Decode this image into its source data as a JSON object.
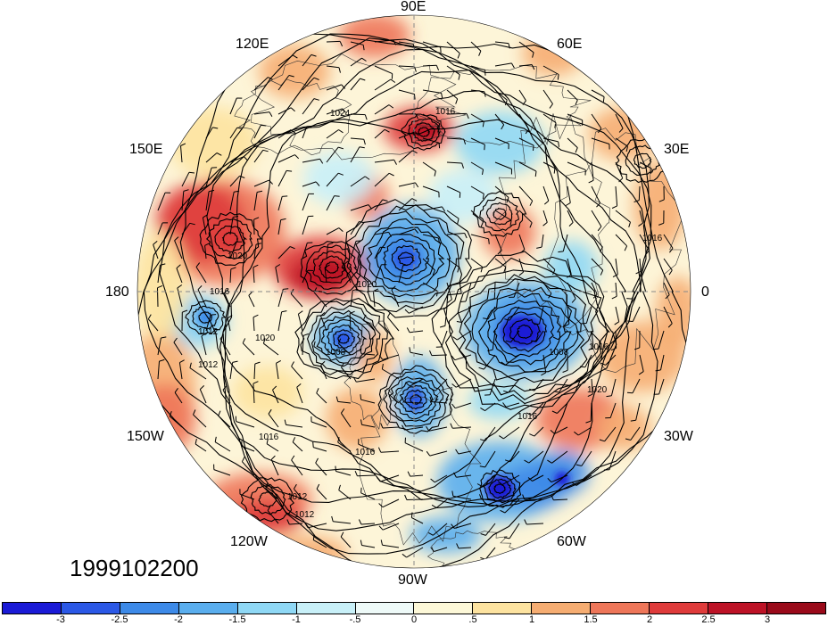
{
  "map": {
    "projection": "north-polar-stereographic",
    "date_label": "1999102200",
    "longitude_labels": [
      "90E",
      "60E",
      "30E",
      "0",
      "30W",
      "60W",
      "90W",
      "120W",
      "150W",
      "180",
      "150E",
      "120E"
    ],
    "isobar_labels": [
      "1016",
      "1024",
      "1020",
      "1016",
      "1012",
      "1020",
      "1012",
      "1020",
      "1008",
      "1016",
      "1016",
      "1012",
      "1012",
      "1016",
      "1020",
      "1008",
      "1016",
      "1016"
    ],
    "colors": {
      "land_outline": "#333333",
      "contour": "#000000",
      "grid": "#888888"
    }
  },
  "colorbar": {
    "tick_labels": [
      "-3",
      "-2.5",
      "-2",
      "-1.5",
      "-1",
      "-.5",
      "0",
      ".5",
      "1",
      "1.5",
      "2",
      "2.5",
      "3"
    ],
    "colors": [
      "#1a1ad6",
      "#2b58e6",
      "#3d8ae8",
      "#5aaeee",
      "#8fd8f5",
      "#c8f0f8",
      "#eefaf8",
      "#fdf8d8",
      "#fde3a0",
      "#f6ad72",
      "#ee7659",
      "#df3b3b",
      "#bd1226",
      "#9a0a1a"
    ]
  }
}
